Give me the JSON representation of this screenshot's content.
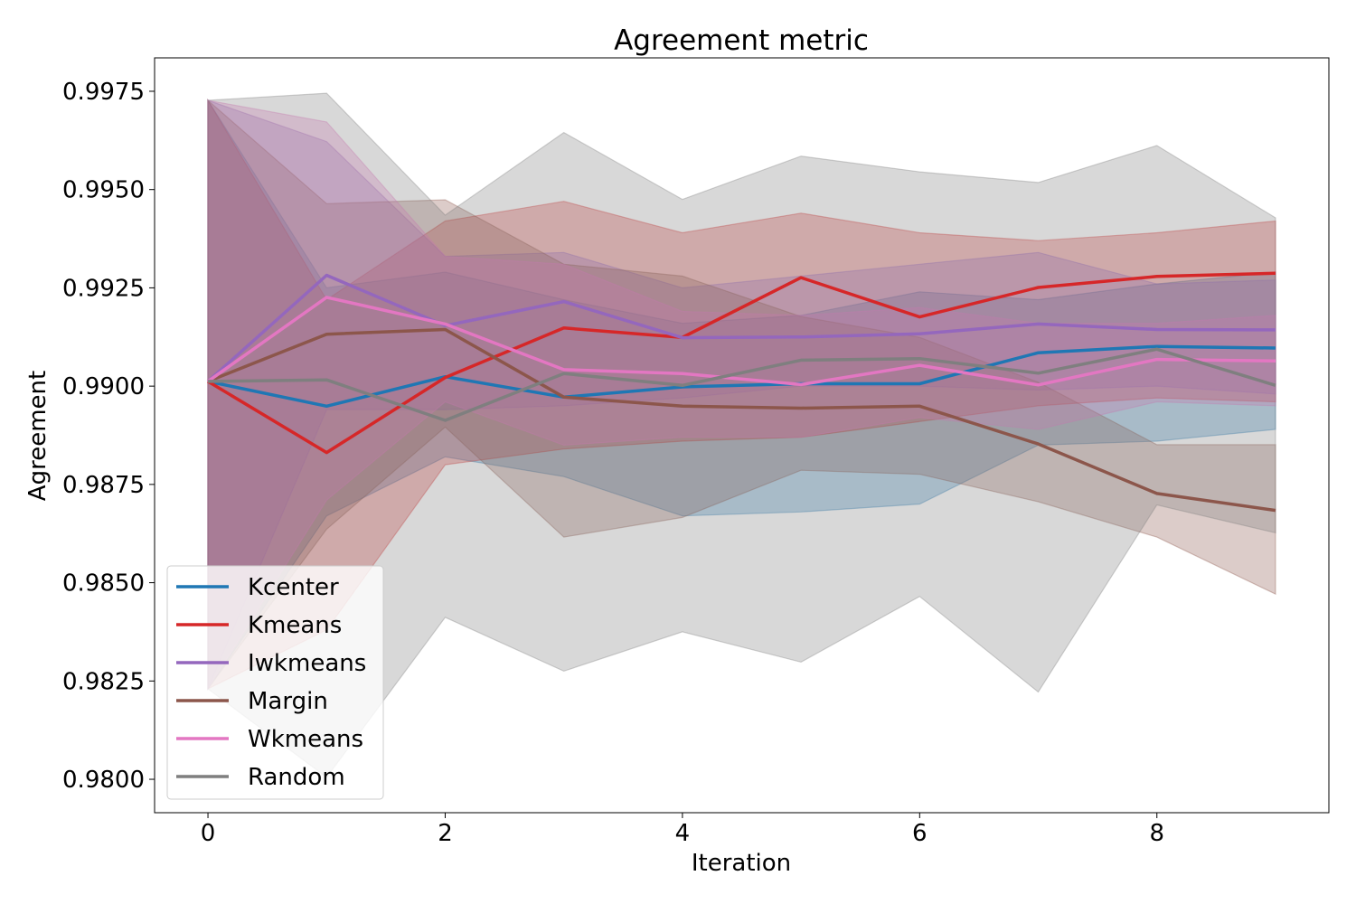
{
  "chart_data": {
    "type": "line",
    "title": "Agreement metric",
    "xlabel": "Iteration",
    "ylabel": "Agreement",
    "xlim": [
      -0.45,
      9.45
    ],
    "ylim": [
      0.97915,
      0.99835
    ],
    "x_ticks": [
      0,
      2,
      4,
      6,
      8
    ],
    "x_tick_labels": [
      "0",
      "2",
      "4",
      "6",
      "8"
    ],
    "y_ticks": [
      0.98,
      0.9825,
      0.985,
      0.9875,
      0.99,
      0.9925,
      0.995,
      0.9975
    ],
    "y_tick_labels": [
      "0.9800",
      "0.9825",
      "0.9850",
      "0.9875",
      "0.9900",
      "0.9925",
      "0.9950",
      "0.9975"
    ],
    "grid": false,
    "legend_position": "lower-left",
    "x": [
      0,
      1,
      2,
      3,
      4,
      5,
      6,
      7,
      8,
      9
    ],
    "series": [
      {
        "name": "Kcenter",
        "color": "#1f77b4",
        "values": [
          0.99012,
          0.98949,
          0.99024,
          0.98972,
          0.98998,
          0.99006,
          0.99006,
          0.99085,
          0.99101,
          0.99097
        ],
        "band_upper": [
          0.99727,
          0.9925,
          0.9929,
          0.9922,
          0.9916,
          0.9918,
          0.9924,
          0.9922,
          0.9926,
          0.9929
        ],
        "band_lower": [
          0.9823,
          0.9867,
          0.9882,
          0.9877,
          0.9867,
          0.9868,
          0.987,
          0.9885,
          0.9886,
          0.9889
        ]
      },
      {
        "name": "Kmeans",
        "color": "#d62728",
        "values": [
          0.99012,
          0.98831,
          0.99022,
          0.99148,
          0.99124,
          0.99276,
          0.99176,
          0.99251,
          0.99279,
          0.99287
        ],
        "band_upper": [
          0.99727,
          0.9922,
          0.9942,
          0.9947,
          0.9939,
          0.9944,
          0.9939,
          0.9937,
          0.9939,
          0.9942
        ],
        "band_lower": [
          0.9823,
          0.9838,
          0.988,
          0.9884,
          0.9886,
          0.9887,
          0.9891,
          0.9895,
          0.9897,
          0.9896
        ]
      },
      {
        "name": "Iwkmeans",
        "color": "#9467bd",
        "values": [
          0.99012,
          0.99282,
          0.99154,
          0.99215,
          0.99123,
          0.99125,
          0.99133,
          0.99158,
          0.99144,
          0.99143
        ],
        "band_upper": [
          0.99727,
          0.99622,
          0.9933,
          0.9934,
          0.9925,
          0.9928,
          0.9931,
          0.9934,
          0.9926,
          0.9927
        ],
        "band_lower": [
          0.9823,
          0.9894,
          0.9894,
          0.9895,
          0.9897,
          0.99,
          0.99,
          0.9899,
          0.99,
          0.9898
        ]
      },
      {
        "name": "Margin",
        "color": "#8c564b",
        "values": [
          0.99012,
          0.99132,
          0.99144,
          0.98972,
          0.98949,
          0.98944,
          0.98949,
          0.98853,
          0.98727,
          0.98684
        ],
        "band_upper": [
          0.99727,
          0.99464,
          0.99474,
          0.9931,
          0.9928,
          0.99177,
          0.99124,
          0.9901,
          0.98851,
          0.98851
        ],
        "band_lower": [
          0.9823,
          0.98636,
          0.98896,
          0.98616,
          0.98666,
          0.98786,
          0.98776,
          0.98706,
          0.98616,
          0.98471
        ]
      },
      {
        "name": "Wkmeans",
        "color": "#e377c2",
        "values": [
          0.99012,
          0.99226,
          0.99158,
          0.99042,
          0.99032,
          0.99004,
          0.99053,
          0.99003,
          0.99068,
          0.99064
        ],
        "band_upper": [
          0.99727,
          0.99672,
          0.9933,
          0.9931,
          0.9919,
          0.9918,
          0.992,
          0.9916,
          0.9916,
          0.9918
        ],
        "band_lower": [
          0.9823,
          0.9871,
          0.9896,
          0.9885,
          0.9887,
          0.9887,
          0.9892,
          0.9889,
          0.9896,
          0.9895
        ]
      },
      {
        "name": "Random",
        "color": "#7f7f7f",
        "values": [
          0.99012,
          0.99016,
          0.98913,
          0.99032,
          0.99002,
          0.99066,
          0.9907,
          0.99033,
          0.99094,
          0.99002
        ],
        "band_upper": [
          0.99727,
          0.99745,
          0.99435,
          0.99645,
          0.99475,
          0.99585,
          0.99545,
          0.99518,
          0.99612,
          0.99428
        ],
        "band_lower": [
          0.9823,
          0.98005,
          0.98412,
          0.98275,
          0.98375,
          0.98298,
          0.98465,
          0.98222,
          0.98698,
          0.98627
        ]
      }
    ]
  }
}
